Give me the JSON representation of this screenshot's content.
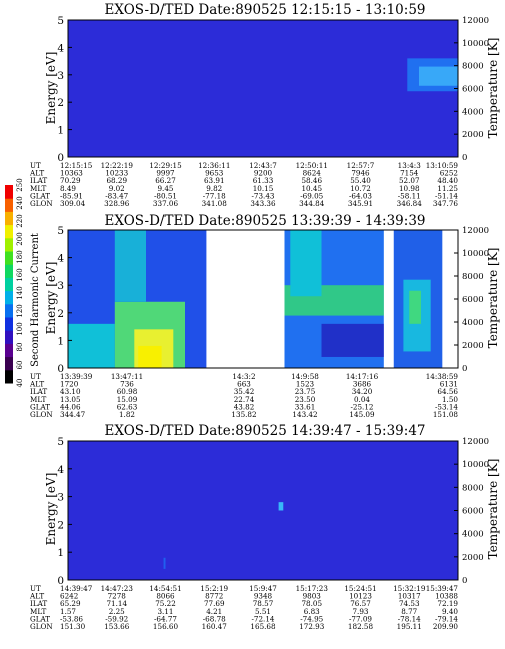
{
  "colorbar": {
    "label": "Second Harmonic Current",
    "ticks": [
      "40",
      "60",
      "80",
      "100",
      "120",
      "140",
      "160",
      "180",
      "200",
      "220",
      "240",
      "250"
    ]
  },
  "chart_data": [
    {
      "type": "heatmap",
      "title": "EXOS-D/TED   Date:890525   12:15:15 - 13:10:59",
      "ylabel": "Energy [eV]",
      "y2label": "Temperature [K]",
      "ylim": [
        0,
        5
      ],
      "y2lim": [
        0,
        12000
      ],
      "yticks": [
        "0",
        "1",
        "2",
        "3",
        "4",
        "5"
      ],
      "y2ticks": [
        "0",
        "2000",
        "4000",
        "6000",
        "8000",
        "10000",
        "12000"
      ],
      "background_color": "#2c2cd8",
      "features": [
        {
          "x_from": 0.87,
          "x_to": 1.0,
          "y_from": 2.4,
          "y_to": 3.6,
          "color": "#2070f0"
        },
        {
          "x_from": 0.9,
          "x_to": 1.0,
          "y_from": 2.6,
          "y_to": 3.3,
          "color": "#38a8f8"
        }
      ],
      "rows": [
        {
          "label": "UT",
          "values": [
            "12:15:15",
            "12:22:19",
            "12:29:15",
            "12:36:11",
            "12:43:7",
            "12:50:11",
            "12:57:7",
            "13:4:3",
            "13:10:59"
          ]
        },
        {
          "label": "ALT",
          "values": [
            "10363",
            "10233",
            "9997",
            "9653",
            "9200",
            "8624",
            "7946",
            "7154",
            "6252"
          ]
        },
        {
          "label": "ILAT",
          "values": [
            "70.29",
            "68.29",
            "66.27",
            "63.91",
            "61.33",
            "58.46",
            "55.40",
            "52.07",
            "48.40"
          ]
        },
        {
          "label": "MLT",
          "values": [
            "8.49",
            "9.02",
            "9.45",
            "9.82",
            "10.15",
            "10.45",
            "10.72",
            "10.98",
            "11.25"
          ]
        },
        {
          "label": "GLAT",
          "values": [
            "-85.91",
            "-83.47",
            "-80.51",
            "-77.18",
            "-73.43",
            "-69.05",
            "-64.03",
            "-58.11",
            "-51.14"
          ]
        },
        {
          "label": "GLON",
          "values": [
            "309.04",
            "328.96",
            "337.06",
            "341.08",
            "343.36",
            "344.84",
            "345.91",
            "346.84",
            "347.76"
          ]
        }
      ]
    },
    {
      "type": "heatmap",
      "title": "EXOS-D/TED   Date:890525   13:39:39 - 14:39:39",
      "ylabel": "Energy [eV]",
      "y2label": "Temperature [K]",
      "ylim": [
        0,
        5
      ],
      "y2lim": [
        0,
        12000
      ],
      "yticks": [
        "0",
        "1",
        "2",
        "3",
        "4",
        "5"
      ],
      "y2ticks": [
        "0",
        "2000",
        "4000",
        "6000",
        "8000",
        "10000",
        "12000"
      ],
      "data_gaps": [
        [
          0.355,
          0.555
        ],
        [
          0.81,
          0.835
        ],
        [
          0.96,
          1.0
        ]
      ],
      "segments": [
        {
          "x_from": 0.0,
          "x_to": 0.355,
          "y_from": 0,
          "y_to": 5,
          "color": "#2050e8"
        },
        {
          "x_from": 0.0,
          "x_to": 0.12,
          "y_from": 0,
          "y_to": 1.6,
          "color": "#10c0d8"
        },
        {
          "x_from": 0.12,
          "x_to": 0.3,
          "y_from": 0,
          "y_to": 2.4,
          "color": "#50d878"
        },
        {
          "x_from": 0.17,
          "x_to": 0.27,
          "y_from": 0,
          "y_to": 1.4,
          "color": "#e8f030"
        },
        {
          "x_from": 0.18,
          "x_to": 0.24,
          "y_from": 0,
          "y_to": 0.8,
          "color": "#f8f000"
        },
        {
          "x_from": 0.12,
          "x_to": 0.2,
          "y_from": 2.4,
          "y_to": 5,
          "color": "#18b0d8"
        },
        {
          "x_from": 0.555,
          "x_to": 0.81,
          "y_from": 0,
          "y_to": 5,
          "color": "#2070f0"
        },
        {
          "x_from": 0.555,
          "x_to": 0.81,
          "y_from": 1.9,
          "y_to": 3.0,
          "color": "#30c888"
        },
        {
          "x_from": 0.57,
          "x_to": 0.65,
          "y_from": 2.6,
          "y_to": 5,
          "color": "#10c0d8"
        },
        {
          "x_from": 0.65,
          "x_to": 0.81,
          "y_from": 0.4,
          "y_to": 1.6,
          "color": "#2030c8"
        },
        {
          "x_from": 0.835,
          "x_to": 0.96,
          "y_from": 0,
          "y_to": 5,
          "color": "#2060e8"
        },
        {
          "x_from": 0.86,
          "x_to": 0.93,
          "y_from": 0.6,
          "y_to": 3.2,
          "color": "#18b8e0"
        },
        {
          "x_from": 0.875,
          "x_to": 0.905,
          "y_from": 1.6,
          "y_to": 2.8,
          "color": "#40d880"
        }
      ],
      "rows": [
        {
          "label": "UT",
          "values": [
            "13:39:39",
            "13:47:11",
            "14:3:2",
            "14:9:58",
            "14:17:16",
            "14:38:59"
          ]
        },
        {
          "label": "ALT",
          "values": [
            "1720",
            "736",
            "663",
            "1523",
            "3686",
            "6131"
          ]
        },
        {
          "label": "ILAT",
          "values": [
            "43.10",
            "60.98",
            "35.42",
            "23.75",
            "34.20",
            "64.56"
          ]
        },
        {
          "label": "MLT",
          "values": [
            "13.05",
            "15.09",
            "22.74",
            "23.50",
            "0.04",
            "1.50"
          ]
        },
        {
          "label": "GLAT",
          "values": [
            "44.06",
            "62.63",
            "43.82",
            "33.61",
            "-25.12",
            "-53.14"
          ]
        },
        {
          "label": "GLON",
          "values": [
            "344.47",
            "1.82",
            "135.82",
            "143.42",
            "145.09",
            "151.08"
          ]
        }
      ]
    },
    {
      "type": "heatmap",
      "title": "EXOS-D/TED   Date:890525   14:39:47 - 15:39:47",
      "ylabel": "Energy [eV]",
      "y2label": "Temperature [K]",
      "ylim": [
        0,
        5
      ],
      "y2lim": [
        0,
        12000
      ],
      "yticks": [
        "0",
        "1",
        "2",
        "3",
        "4",
        "5"
      ],
      "y2ticks": [
        "0",
        "2000",
        "4000",
        "6000",
        "8000",
        "10000",
        "12000"
      ],
      "background_color": "#2c2cd8",
      "features": [
        {
          "x_from": 0.54,
          "x_to": 0.552,
          "y_from": 2.5,
          "y_to": 2.8,
          "color": "#38b8f8"
        },
        {
          "x_from": 0.245,
          "x_to": 0.25,
          "y_from": 0.4,
          "y_to": 0.8,
          "color": "#2060f0"
        }
      ],
      "rows": [
        {
          "label": "UT",
          "values": [
            "14:39:47",
            "14:47:23",
            "14:54:51",
            "15:2:19",
            "15:9:47",
            "15:17:23",
            "15:24:51",
            "15:32:19",
            "15:39:47"
          ]
        },
        {
          "label": "ALT",
          "values": [
            "6242",
            "7278",
            "8066",
            "8772",
            "9348",
            "9803",
            "10123",
            "10317",
            "10388"
          ]
        },
        {
          "label": "ILAT",
          "values": [
            "65.29",
            "71.14",
            "75.22",
            "77.69",
            "78.57",
            "78.05",
            "76.57",
            "74.53",
            "72.19"
          ]
        },
        {
          "label": "MLT",
          "values": [
            "1.57",
            "2.25",
            "3.11",
            "4.21",
            "5.51",
            "6.83",
            "7.93",
            "8.77",
            "9.40"
          ]
        },
        {
          "label": "GLAT",
          "values": [
            "-53.86",
            "-59.92",
            "-64.77",
            "-68.78",
            "-72.14",
            "-74.95",
            "-77.09",
            "-78.14",
            "-79.14"
          ]
        },
        {
          "label": "GLON",
          "values": [
            "151.30",
            "153.66",
            "156.60",
            "160.47",
            "165.68",
            "172.93",
            "182.58",
            "195.11",
            "209.90"
          ]
        }
      ]
    }
  ]
}
